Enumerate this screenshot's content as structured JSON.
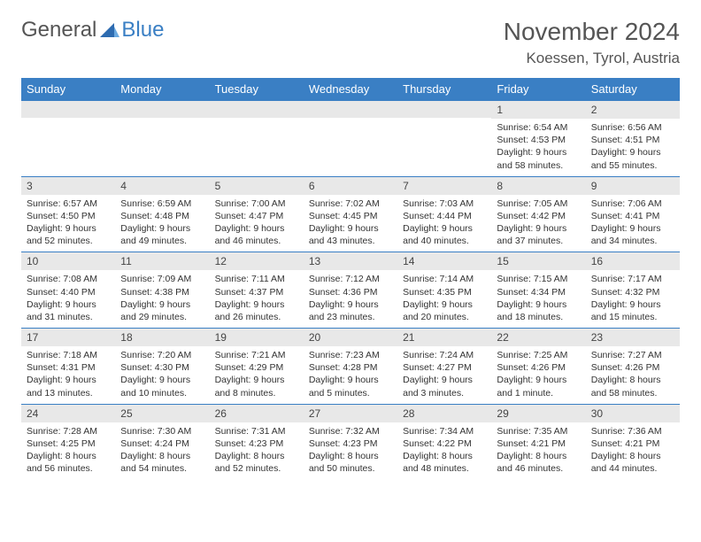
{
  "logo": {
    "text_general": "General",
    "text_blue": "Blue"
  },
  "title": "November 2024",
  "location": "Koessen, Tyrol, Austria",
  "header_bg": "#3a7fc4",
  "daynum_bg": "#e8e8e8",
  "border_color": "#3a7fc4",
  "text_color": "#333333",
  "title_color": "#555555",
  "day_headers_fontsize": 13,
  "daynum_fontsize": 12,
  "content_fontsize": 10.5,
  "day_headers": [
    "Sunday",
    "Monday",
    "Tuesday",
    "Wednesday",
    "Thursday",
    "Friday",
    "Saturday"
  ],
  "weeks": [
    [
      {
        "n": "",
        "sunrise": "",
        "sunset": "",
        "daylight": ""
      },
      {
        "n": "",
        "sunrise": "",
        "sunset": "",
        "daylight": ""
      },
      {
        "n": "",
        "sunrise": "",
        "sunset": "",
        "daylight": ""
      },
      {
        "n": "",
        "sunrise": "",
        "sunset": "",
        "daylight": ""
      },
      {
        "n": "",
        "sunrise": "",
        "sunset": "",
        "daylight": ""
      },
      {
        "n": "1",
        "sunrise": "Sunrise: 6:54 AM",
        "sunset": "Sunset: 4:53 PM",
        "daylight": "Daylight: 9 hours and 58 minutes."
      },
      {
        "n": "2",
        "sunrise": "Sunrise: 6:56 AM",
        "sunset": "Sunset: 4:51 PM",
        "daylight": "Daylight: 9 hours and 55 minutes."
      }
    ],
    [
      {
        "n": "3",
        "sunrise": "Sunrise: 6:57 AM",
        "sunset": "Sunset: 4:50 PM",
        "daylight": "Daylight: 9 hours and 52 minutes."
      },
      {
        "n": "4",
        "sunrise": "Sunrise: 6:59 AM",
        "sunset": "Sunset: 4:48 PM",
        "daylight": "Daylight: 9 hours and 49 minutes."
      },
      {
        "n": "5",
        "sunrise": "Sunrise: 7:00 AM",
        "sunset": "Sunset: 4:47 PM",
        "daylight": "Daylight: 9 hours and 46 minutes."
      },
      {
        "n": "6",
        "sunrise": "Sunrise: 7:02 AM",
        "sunset": "Sunset: 4:45 PM",
        "daylight": "Daylight: 9 hours and 43 minutes."
      },
      {
        "n": "7",
        "sunrise": "Sunrise: 7:03 AM",
        "sunset": "Sunset: 4:44 PM",
        "daylight": "Daylight: 9 hours and 40 minutes."
      },
      {
        "n": "8",
        "sunrise": "Sunrise: 7:05 AM",
        "sunset": "Sunset: 4:42 PM",
        "daylight": "Daylight: 9 hours and 37 minutes."
      },
      {
        "n": "9",
        "sunrise": "Sunrise: 7:06 AM",
        "sunset": "Sunset: 4:41 PM",
        "daylight": "Daylight: 9 hours and 34 minutes."
      }
    ],
    [
      {
        "n": "10",
        "sunrise": "Sunrise: 7:08 AM",
        "sunset": "Sunset: 4:40 PM",
        "daylight": "Daylight: 9 hours and 31 minutes."
      },
      {
        "n": "11",
        "sunrise": "Sunrise: 7:09 AM",
        "sunset": "Sunset: 4:38 PM",
        "daylight": "Daylight: 9 hours and 29 minutes."
      },
      {
        "n": "12",
        "sunrise": "Sunrise: 7:11 AM",
        "sunset": "Sunset: 4:37 PM",
        "daylight": "Daylight: 9 hours and 26 minutes."
      },
      {
        "n": "13",
        "sunrise": "Sunrise: 7:12 AM",
        "sunset": "Sunset: 4:36 PM",
        "daylight": "Daylight: 9 hours and 23 minutes."
      },
      {
        "n": "14",
        "sunrise": "Sunrise: 7:14 AM",
        "sunset": "Sunset: 4:35 PM",
        "daylight": "Daylight: 9 hours and 20 minutes."
      },
      {
        "n": "15",
        "sunrise": "Sunrise: 7:15 AM",
        "sunset": "Sunset: 4:34 PM",
        "daylight": "Daylight: 9 hours and 18 minutes."
      },
      {
        "n": "16",
        "sunrise": "Sunrise: 7:17 AM",
        "sunset": "Sunset: 4:32 PM",
        "daylight": "Daylight: 9 hours and 15 minutes."
      }
    ],
    [
      {
        "n": "17",
        "sunrise": "Sunrise: 7:18 AM",
        "sunset": "Sunset: 4:31 PM",
        "daylight": "Daylight: 9 hours and 13 minutes."
      },
      {
        "n": "18",
        "sunrise": "Sunrise: 7:20 AM",
        "sunset": "Sunset: 4:30 PM",
        "daylight": "Daylight: 9 hours and 10 minutes."
      },
      {
        "n": "19",
        "sunrise": "Sunrise: 7:21 AM",
        "sunset": "Sunset: 4:29 PM",
        "daylight": "Daylight: 9 hours and 8 minutes."
      },
      {
        "n": "20",
        "sunrise": "Sunrise: 7:23 AM",
        "sunset": "Sunset: 4:28 PM",
        "daylight": "Daylight: 9 hours and 5 minutes."
      },
      {
        "n": "21",
        "sunrise": "Sunrise: 7:24 AM",
        "sunset": "Sunset: 4:27 PM",
        "daylight": "Daylight: 9 hours and 3 minutes."
      },
      {
        "n": "22",
        "sunrise": "Sunrise: 7:25 AM",
        "sunset": "Sunset: 4:26 PM",
        "daylight": "Daylight: 9 hours and 1 minute."
      },
      {
        "n": "23",
        "sunrise": "Sunrise: 7:27 AM",
        "sunset": "Sunset: 4:26 PM",
        "daylight": "Daylight: 8 hours and 58 minutes."
      }
    ],
    [
      {
        "n": "24",
        "sunrise": "Sunrise: 7:28 AM",
        "sunset": "Sunset: 4:25 PM",
        "daylight": "Daylight: 8 hours and 56 minutes."
      },
      {
        "n": "25",
        "sunrise": "Sunrise: 7:30 AM",
        "sunset": "Sunset: 4:24 PM",
        "daylight": "Daylight: 8 hours and 54 minutes."
      },
      {
        "n": "26",
        "sunrise": "Sunrise: 7:31 AM",
        "sunset": "Sunset: 4:23 PM",
        "daylight": "Daylight: 8 hours and 52 minutes."
      },
      {
        "n": "27",
        "sunrise": "Sunrise: 7:32 AM",
        "sunset": "Sunset: 4:23 PM",
        "daylight": "Daylight: 8 hours and 50 minutes."
      },
      {
        "n": "28",
        "sunrise": "Sunrise: 7:34 AM",
        "sunset": "Sunset: 4:22 PM",
        "daylight": "Daylight: 8 hours and 48 minutes."
      },
      {
        "n": "29",
        "sunrise": "Sunrise: 7:35 AM",
        "sunset": "Sunset: 4:21 PM",
        "daylight": "Daylight: 8 hours and 46 minutes."
      },
      {
        "n": "30",
        "sunrise": "Sunrise: 7:36 AM",
        "sunset": "Sunset: 4:21 PM",
        "daylight": "Daylight: 8 hours and 44 minutes."
      }
    ]
  ]
}
